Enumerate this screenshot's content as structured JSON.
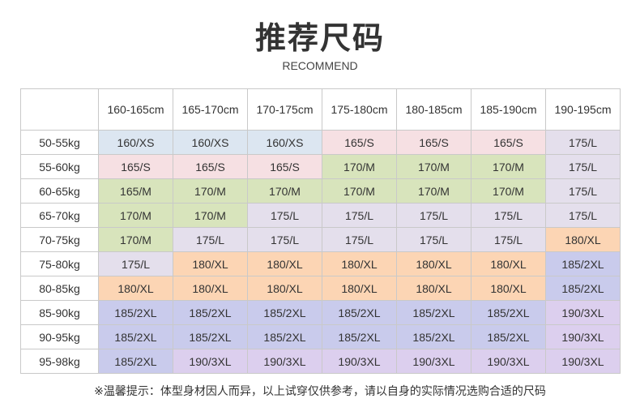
{
  "header": {
    "title": "推荐尺码",
    "subtitle": "RECOMMEND"
  },
  "table": {
    "corner": "",
    "columns": [
      "160-165cm",
      "165-170cm",
      "170-175cm",
      "175-180cm",
      "180-185cm",
      "185-190cm",
      "190-195cm"
    ],
    "rows": [
      {
        "weight": "50-55kg",
        "cells": [
          "160/XS",
          "160/XS",
          "160/XS",
          "165/S",
          "165/S",
          "165/S",
          "175/L"
        ]
      },
      {
        "weight": "55-60kg",
        "cells": [
          "165/S",
          "165/S",
          "165/S",
          "170/M",
          "170/M",
          "170/M",
          "175/L"
        ]
      },
      {
        "weight": "60-65kg",
        "cells": [
          "165/M",
          "170/M",
          "170/M",
          "170/M",
          "170/M",
          "170/M",
          "175/L"
        ]
      },
      {
        "weight": "65-70kg",
        "cells": [
          "170/M",
          "170/M",
          "175/L",
          "175/L",
          "175/L",
          "175/L",
          "175/L"
        ]
      },
      {
        "weight": "70-75kg",
        "cells": [
          "170/M",
          "175/L",
          "175/L",
          "175/L",
          "175/L",
          "175/L",
          "180/XL"
        ]
      },
      {
        "weight": "75-80kg",
        "cells": [
          "175/L",
          "180/XL",
          "180/XL",
          "180/XL",
          "180/XL",
          "180/XL",
          "185/2XL"
        ]
      },
      {
        "weight": "80-85kg",
        "cells": [
          "180/XL",
          "180/XL",
          "180/XL",
          "180/XL",
          "180/XL",
          "180/XL",
          "185/2XL"
        ]
      },
      {
        "weight": "85-90kg",
        "cells": [
          "185/2XL",
          "185/2XL",
          "185/2XL",
          "185/2XL",
          "185/2XL",
          "185/2XL",
          "190/3XL"
        ]
      },
      {
        "weight": "90-95kg",
        "cells": [
          "185/2XL",
          "185/2XL",
          "185/2XL",
          "185/2XL",
          "185/2XL",
          "185/2XL",
          "190/3XL"
        ]
      },
      {
        "weight": "95-98kg",
        "cells": [
          "185/2XL",
          "190/3XL",
          "190/3XL",
          "190/3XL",
          "190/3XL",
          "190/3XL",
          "190/3XL"
        ]
      }
    ],
    "size_colors": {
      "XS": "#dce6f1",
      "S": "#f6e0e3",
      "M": "#d8e4bc",
      "L": "#e4dfec",
      "XL": "#fcd5b4",
      "2XL": "#c9cbec",
      "3XL": "#dccfee"
    }
  },
  "footer": {
    "note": "※温馨提示：体型身材因人而异，以上试穿仅供参考，请以自身的实际情况选购合适的尺码"
  }
}
